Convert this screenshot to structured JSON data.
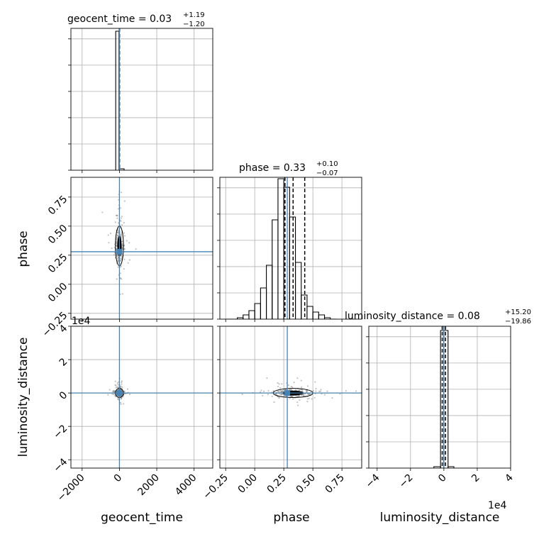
{
  "chart_data": {
    "type": "corner",
    "parameters": [
      "geocent_time",
      "phase",
      "luminosity_distance"
    ],
    "truths": {
      "geocent_time": 0,
      "phase": 0.28,
      "luminosity_distance": 0
    },
    "marginal_titles": [
      {
        "name": "geocent_time",
        "value": "0.03",
        "plus": "+1.19",
        "minus": "−1.20"
      },
      {
        "name": "phase",
        "value": "0.33",
        "plus": "+0.10",
        "minus": "−0.07"
      },
      {
        "name": "luminosity_distance",
        "value": "0.08",
        "plus": "+15.20",
        "minus": "−19.86"
      }
    ],
    "axis_labels": {
      "geocent_time": "geocent_time",
      "phase": "phase",
      "luminosity_distance": "luminosity_distance"
    },
    "offset_labels": {
      "luminosity_distance_y": "1e4",
      "luminosity_distance_x": "1e4"
    },
    "ticks": {
      "geocent_time": [
        "−2000",
        "0",
        "2000",
        "4000"
      ],
      "phase": [
        "−0.25",
        "0.00",
        "0.25",
        "0.50",
        "0.75"
      ],
      "luminosity_distance": [
        "−4",
        "−2",
        "0",
        "2",
        "4"
      ]
    },
    "tick_values": {
      "geocent_time": [
        -2000,
        0,
        2000,
        4000
      ],
      "phase": [
        -0.25,
        0.0,
        0.25,
        0.5,
        0.75
      ],
      "luminosity_distance": [
        -4,
        -2,
        0,
        2,
        4
      ]
    },
    "ranges": {
      "geocent_time": [
        -2600,
        5000
      ],
      "phase": [
        -0.3,
        0.92
      ],
      "luminosity_distance": [
        -4.5,
        4.0
      ]
    },
    "histograms": {
      "geocent_time": {
        "edges": [
          -200,
          -20,
          0,
          250
        ],
        "heights": [
          0.98,
          0.98,
          0.01
        ],
        "quantiles": [
          -1.2,
          0.03,
          1.19
        ]
      },
      "phase": {
        "edges": [
          -0.25,
          -0.15,
          -0.1,
          -0.05,
          0.0,
          0.05,
          0.1,
          0.15,
          0.2,
          0.25,
          0.3,
          0.35,
          0.4,
          0.45,
          0.5,
          0.55,
          0.6,
          0.65,
          0.7
        ],
        "heights": [
          0.0,
          0.01,
          0.03,
          0.06,
          0.11,
          0.22,
          0.38,
          0.7,
          0.99,
          0.93,
          0.72,
          0.4,
          0.17,
          0.09,
          0.05,
          0.03,
          0.01,
          0.0
        ],
        "quantiles": [
          0.26,
          0.33,
          0.43
        ]
      },
      "luminosity_distance": {
        "edges": [
          -0.6,
          -0.2,
          0.0,
          0.25,
          0.6
        ],
        "heights": [
          0.01,
          0.97,
          0.97,
          0.01
        ],
        "quantiles": [
          -0.1,
          0.0,
          0.1
        ]
      }
    },
    "colors": {
      "truth": "#4682b4",
      "hist": "#000000",
      "grid": "#b0b0b0",
      "scatter": "#000000"
    },
    "grid": true
  }
}
